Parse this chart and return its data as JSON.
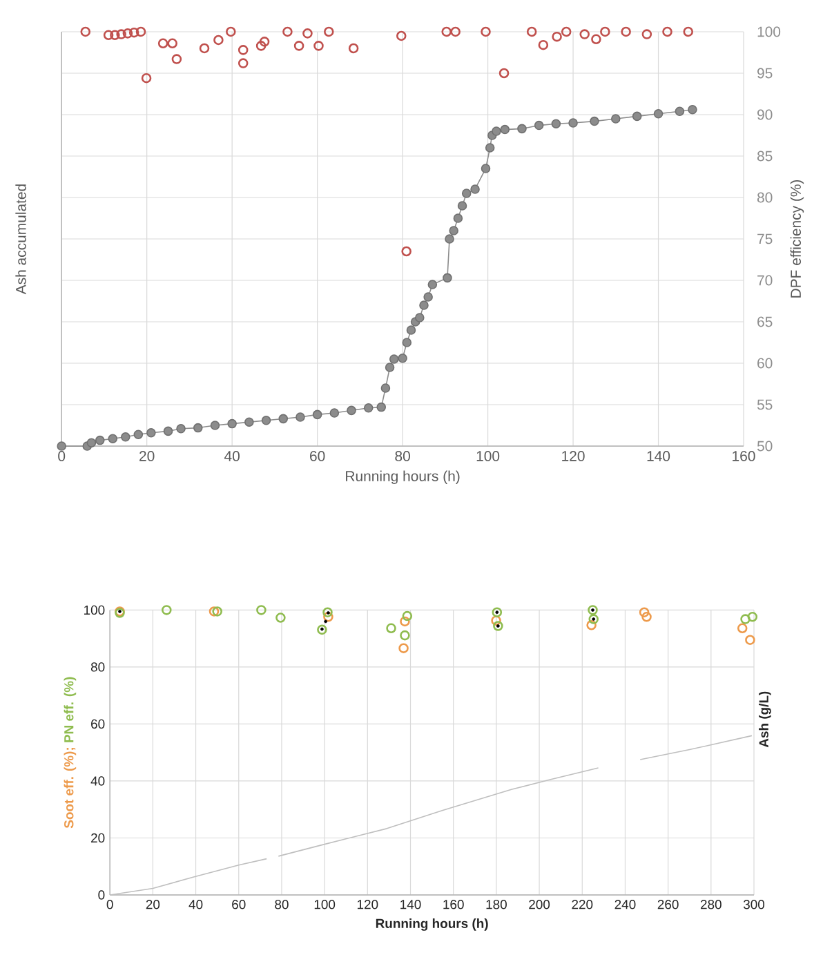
{
  "chart_data": [
    {
      "type": "scatter",
      "xlabel": "Running hours (h)",
      "ylabel": "Ash accumulated",
      "y2label": "DPF efficiency (%)",
      "marker": "circle",
      "grid": true,
      "xlim": [
        0,
        160
      ],
      "xticks": [
        0,
        20,
        40,
        60,
        80,
        100,
        120,
        140,
        160
      ],
      "y2lim": [
        50,
        100
      ],
      "y2ticks": [
        50,
        55,
        60,
        65,
        70,
        75,
        80,
        85,
        90,
        95,
        100
      ],
      "series": [
        {
          "type": "line",
          "axis": "y2",
          "color": "#8c8c8c",
          "x": [
            0,
            6,
            7,
            9,
            12,
            15,
            18,
            21,
            25,
            28,
            32,
            36,
            40,
            44,
            48,
            52,
            56,
            60,
            64,
            68,
            72,
            75,
            76,
            77,
            78,
            80,
            81,
            82,
            83,
            84,
            85,
            86,
            87,
            90.5,
            91,
            92,
            93,
            94,
            95,
            97,
            99.5,
            100.5,
            101,
            102,
            104,
            108,
            112,
            116,
            120,
            125,
            130,
            135,
            140,
            145,
            148
          ],
          "values": [
            50,
            50,
            50.4,
            50.7,
            50.9,
            51.1,
            51.4,
            51.6,
            51.8,
            52.1,
            52.2,
            52.5,
            52.7,
            52.9,
            53.1,
            53.3,
            53.5,
            53.8,
            54,
            54.3,
            54.6,
            54.7,
            57,
            59.5,
            60.5,
            60.6,
            62.5,
            64,
            65,
            65.5,
            67,
            68,
            69.5,
            70.3,
            75,
            76,
            77.5,
            79,
            80.5,
            81,
            83.5,
            86,
            87.5,
            88,
            88.2,
            88.3,
            88.7,
            88.9,
            89,
            89.2,
            89.5,
            89.8,
            90.1,
            90.4,
            90.6
          ]
        },
        {
          "type": "scatter",
          "axis": "y2",
          "color": "#c0504d",
          "x": [
            5.6,
            11,
            12.5,
            14,
            15.5,
            17,
            18.6,
            19.9,
            23.8,
            26,
            27,
            33.5,
            36.8,
            39.7,
            42.6,
            42.6,
            46.8,
            47.6,
            53,
            55.7,
            57.7,
            60.3,
            62.7,
            68.5,
            79.7,
            80.9,
            90.3,
            92.4,
            99.5,
            103.8,
            110.3,
            113,
            116.2,
            118.4,
            122.7,
            125.4,
            127.5,
            132.4,
            137.3,
            142.1,
            147
          ],
          "values": [
            100,
            99.6,
            99.6,
            99.7,
            99.8,
            99.9,
            100,
            94.4,
            98.6,
            98.6,
            96.7,
            98,
            99,
            100,
            97.8,
            96.2,
            98.3,
            98.8,
            100,
            98.3,
            99.8,
            98.3,
            100,
            98,
            99.5,
            73.5,
            100,
            100,
            100,
            95,
            100,
            98.4,
            99.4,
            100,
            99.7,
            99.1,
            100,
            100,
            99.7,
            100,
            100
          ]
        }
      ]
    },
    {
      "type": "scatter",
      "xlabel": "Running hours (h)",
      "y2label": "Ash (g/L)",
      "marker": "circle",
      "grid": true,
      "xlim": [
        0,
        300
      ],
      "xticks": [
        0,
        20,
        40,
        60,
        80,
        100,
        120,
        140,
        160,
        180,
        200,
        220,
        240,
        260,
        280,
        300
      ],
      "ylim": [
        0,
        100
      ],
      "yticks": [
        0,
        20,
        40,
        60,
        80,
        100
      ],
      "series": [
        {
          "type": "line",
          "marker": "none",
          "color": "#bfbfbf",
          "x": [
            0,
            20,
            39,
            60,
            73,
            75.5,
            78.5,
            99,
            129,
            155,
            187,
            205,
            227.5,
            237,
            247,
            270,
            299
          ],
          "values": [
            0,
            2.3,
            6.3,
            10.5,
            12.7,
            null,
            13.6,
            17.6,
            23.3,
            29.7,
            37,
            40.5,
            44.6,
            null,
            47.5,
            51,
            55.9
          ]
        },
        {
          "name": "Soot eff. (%);",
          "color": "#ed9a4b",
          "x": [
            4.6,
            48.5,
            137.4,
            136.8,
            101.7,
            179.9,
            224.3,
            248.9,
            250,
            294.6,
            298.2
          ],
          "values": [
            99.5,
            99.5,
            96,
            86.6,
            97.6,
            96.3,
            94.7,
            99.2,
            97.6,
            93.6,
            89.5
          ]
        },
        {
          "name": "PN eff. (%)",
          "color": "#8fbc4f",
          "x": [
            4.6,
            26.4,
            50,
            70.5,
            79.5,
            98.8,
            101.4,
            131,
            138.5,
            137.4,
            180.3,
            180.8,
            224.9,
            225.3,
            296,
            299.3
          ],
          "values": [
            99,
            100,
            99.5,
            100,
            97.3,
            93.1,
            99.2,
            93.6,
            97.9,
            91.1,
            99.2,
            94.4,
            100,
            96.8,
            96.8,
            97.6
          ]
        },
        {
          "color": "#000000",
          "x": [
            4.6,
            98.8,
            101.7,
            100.5,
            180.3,
            180.8,
            224.9,
            225.3
          ],
          "values": [
            99.5,
            93.3,
            99,
            96,
            99.2,
            94.4,
            100,
            96.8
          ]
        }
      ]
    }
  ]
}
